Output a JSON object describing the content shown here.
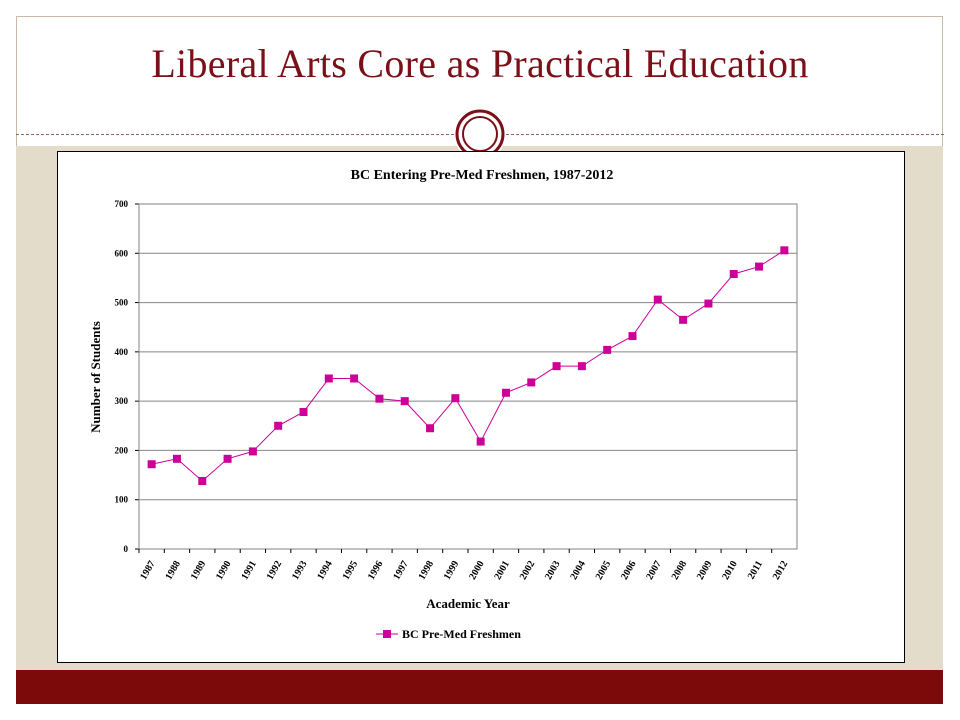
{
  "slide": {
    "title": "Liberal Arts Core as Practical Education"
  },
  "theme": {
    "title_color": "#7a1018",
    "band_color": "#e4dccb",
    "footer_color": "#7d0a0a",
    "series_color": "#cc0099"
  },
  "chart_data": {
    "type": "line",
    "title": "BC Entering Pre-Med Freshmen, 1987-2012",
    "xlabel": "Academic Year",
    "ylabel": "Number of Students",
    "ylim": [
      0,
      700
    ],
    "yticks": [
      0,
      100,
      200,
      300,
      400,
      500,
      600,
      700
    ],
    "grid": true,
    "legend_position": "bottom",
    "categories": [
      "1987",
      "1988",
      "1989",
      "1990",
      "1991",
      "1992",
      "1993",
      "1994",
      "1995",
      "1996",
      "1997",
      "1998",
      "1999",
      "2000",
      "2001",
      "2002",
      "2003",
      "2004",
      "2005",
      "2006",
      "2007",
      "2008",
      "2009",
      "2010",
      "2011",
      "2012"
    ],
    "series": [
      {
        "name": "BC Pre-Med Freshmen",
        "values": [
          172,
          183,
          138,
          183,
          198,
          250,
          278,
          346,
          346,
          305,
          300,
          245,
          306,
          218,
          317,
          338,
          371,
          371,
          404,
          432,
          506,
          465,
          498,
          558,
          573,
          606
        ]
      }
    ]
  }
}
